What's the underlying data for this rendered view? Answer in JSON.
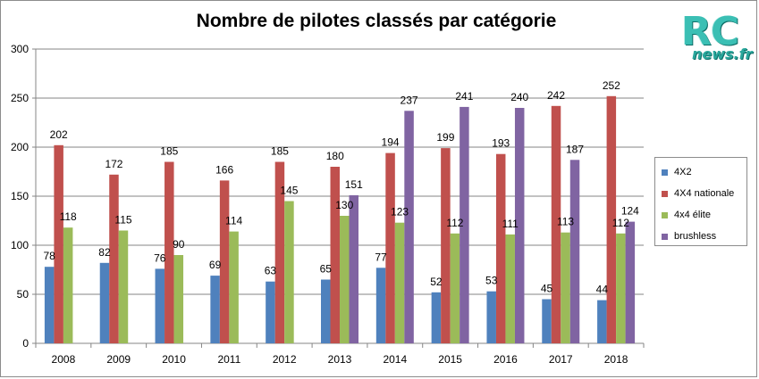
{
  "chart_data": {
    "type": "bar",
    "title": "Nombre de pilotes classés par catégorie",
    "categories": [
      "2008",
      "2009",
      "2010",
      "2011",
      "2012",
      "2013",
      "2014",
      "2015",
      "2016",
      "2017",
      "2018"
    ],
    "series": [
      {
        "name": "4X2",
        "color": "#4f81bd",
        "values": [
          78,
          82,
          76,
          69,
          63,
          65,
          77,
          52,
          53,
          45,
          44
        ]
      },
      {
        "name": "4X4 nationale",
        "color": "#c0504d",
        "values": [
          202,
          172,
          185,
          166,
          185,
          180,
          194,
          199,
          193,
          242,
          252
        ]
      },
      {
        "name": "4x4 élite",
        "color": "#9bbb59",
        "values": [
          118,
          115,
          90,
          114,
          145,
          130,
          123,
          112,
          111,
          113,
          112
        ]
      },
      {
        "name": "brushless",
        "color": "#8064a2",
        "values": [
          null,
          null,
          null,
          null,
          null,
          151,
          237,
          241,
          240,
          187,
          124
        ]
      }
    ],
    "yticks": [
      "0",
      "50",
      "100",
      "150",
      "200",
      "250",
      "300"
    ],
    "ylim": [
      0,
      300
    ],
    "xlabel": "",
    "ylabel": "",
    "grid": true,
    "legend_position": "right"
  },
  "logo": {
    "rc": "RC",
    "news": "news.fr",
    "icon": "rcnews-logo"
  }
}
